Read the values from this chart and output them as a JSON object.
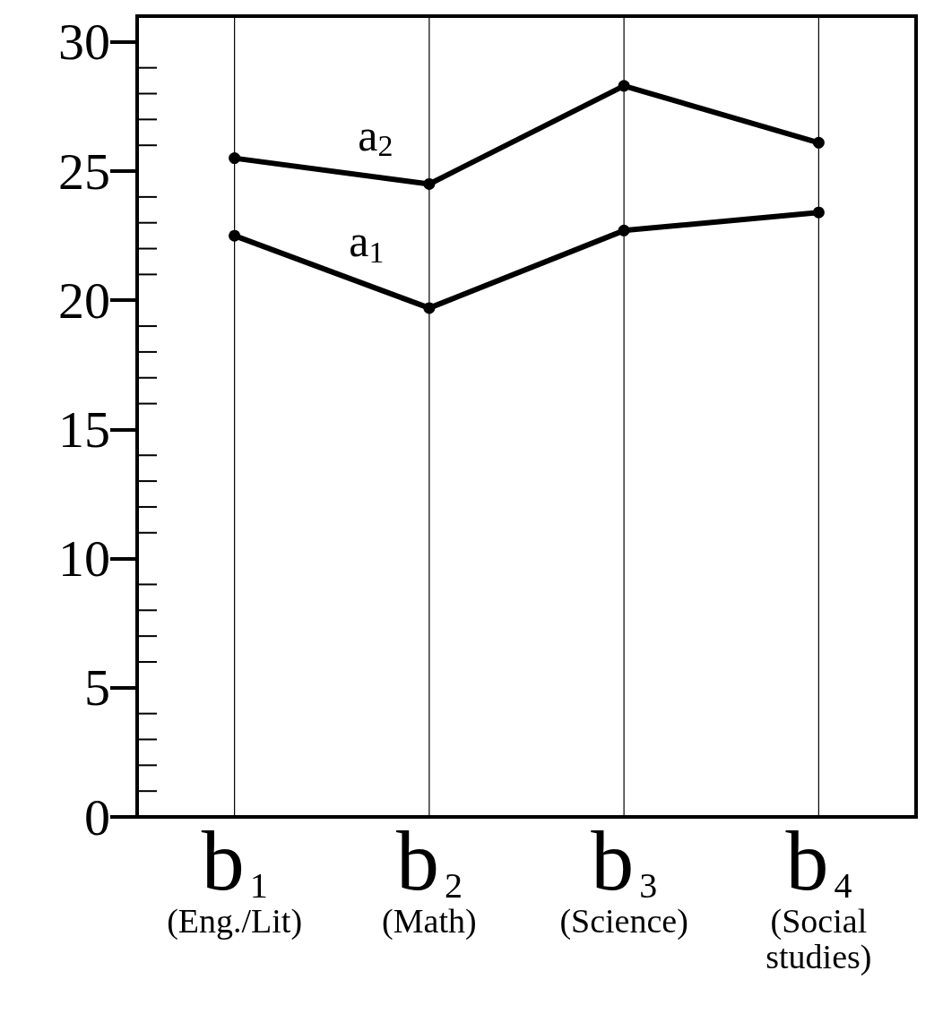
{
  "chart_data": {
    "type": "line",
    "categories": [
      "b$_{1}$\n(Eng./Lit)",
      "b$_{2}$\n(Math)",
      "b$_{3}$\n(Science)",
      "b$_{4}$\n(Social\nstudies)"
    ],
    "series": [
      {
        "name": "a$_{2}$",
        "color": "#000000",
        "values": [
          25.5,
          24.5,
          28.3,
          26.1
        ]
      },
      {
        "name": "a$_{1}$",
        "color": "#000000",
        "values": [
          22.5,
          19.7,
          22.7,
          23.4
        ]
      }
    ],
    "ylim": [
      0,
      31
    ],
    "yticks": [
      0,
      5,
      10,
      15,
      20,
      25,
      30
    ],
    "grid": "x",
    "legend": false,
    "marker": "circle",
    "line_style": "solid"
  }
}
